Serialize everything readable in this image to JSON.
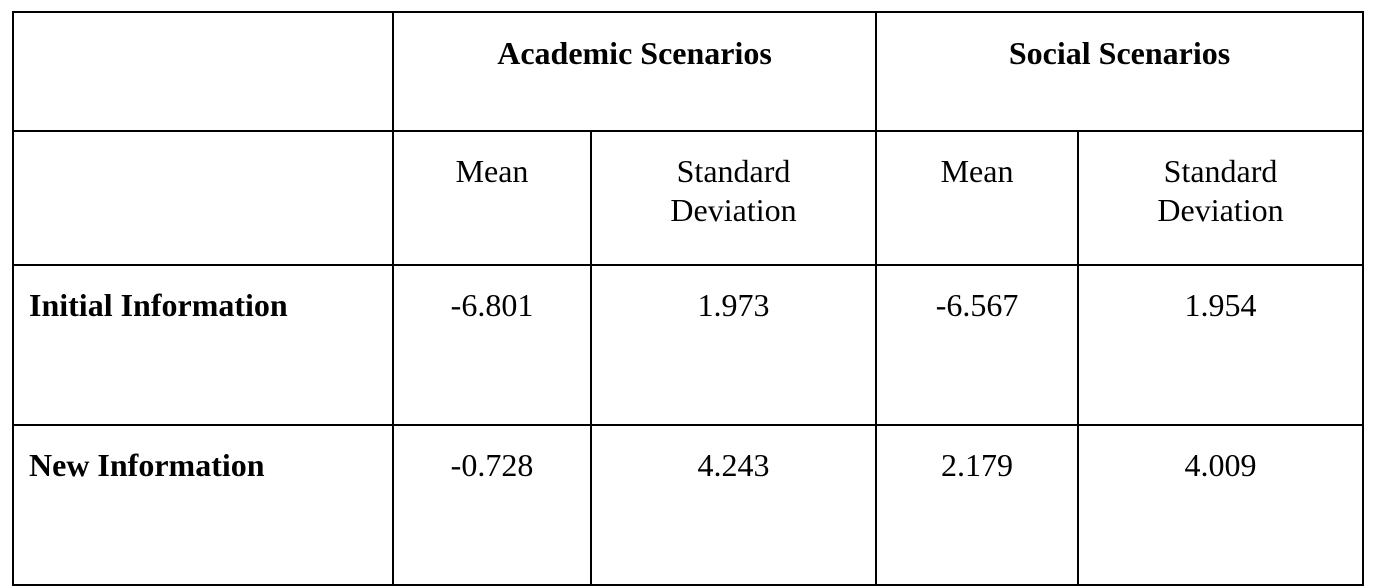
{
  "table": {
    "groups": [
      {
        "label": "Academic Scenarios"
      },
      {
        "label": "Social Scenarios"
      }
    ],
    "subheaders": {
      "mean": "Mean",
      "sd_line1": "Standard",
      "sd_line2": "Deviation"
    },
    "rows": [
      {
        "label": "Initial Information",
        "academic_mean": "-6.801",
        "academic_sd": "1.973",
        "social_mean": "-6.567",
        "social_sd": "1.954"
      },
      {
        "label": "New Information",
        "academic_mean": "-0.728",
        "academic_sd": "4.243",
        "social_mean": "2.179",
        "social_sd": "4.009"
      }
    ]
  }
}
